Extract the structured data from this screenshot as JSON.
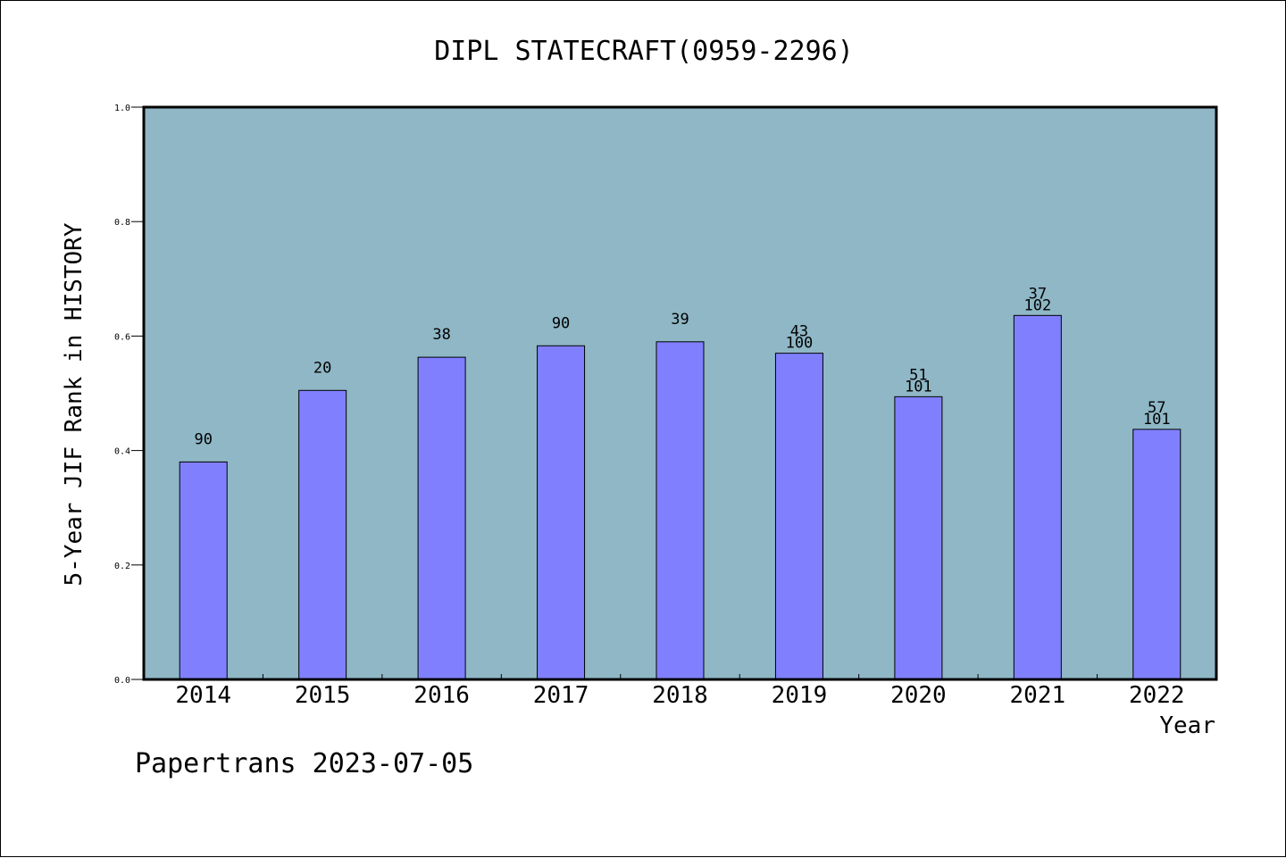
{
  "chart_data": {
    "type": "bar",
    "title": "DIPL STATECRAFT(0959-2296)",
    "xlabel": "Year",
    "ylabel": "5-Year JIF Rank in HISTORY",
    "categories": [
      "2014",
      "2015",
      "2016",
      "2017",
      "2018",
      "2019",
      "2020",
      "2021",
      "2022"
    ],
    "values": [
      0.38,
      0.505,
      0.563,
      0.583,
      0.59,
      0.57,
      0.494,
      0.636,
      0.437
    ],
    "labels": [
      [
        "90"
      ],
      [
        "20"
      ],
      [
        "38"
      ],
      [
        "90"
      ],
      [
        "39"
      ],
      [
        "43",
        "100"
      ],
      [
        "51",
        "101"
      ],
      [
        "37",
        "102"
      ],
      [
        "57",
        "101"
      ]
    ],
    "ylim": [
      0.0,
      1.0
    ],
    "yticks": [
      "0.0",
      "0.2",
      "0.4",
      "0.6",
      "0.8",
      "1.0"
    ],
    "grid": false,
    "colors": {
      "plot_background": "#8fb7c6",
      "bar": "#8080ff",
      "axes": "#000000"
    }
  },
  "footer": {
    "text": "Papertrans 2023-07-05"
  }
}
